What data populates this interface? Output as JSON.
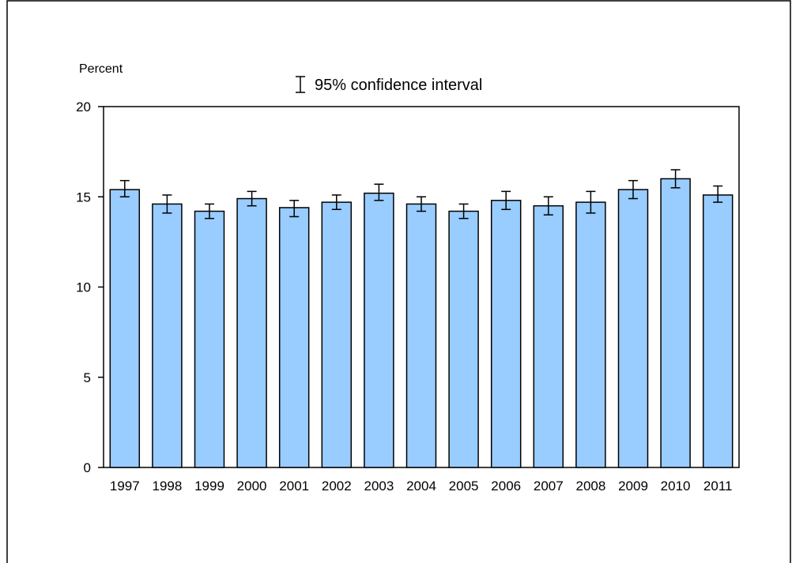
{
  "chart_data": {
    "type": "bar",
    "title": "",
    "xlabel": "",
    "ylabel": "Percent",
    "ylim": [
      0,
      20
    ],
    "yticks": [
      0,
      5,
      10,
      15,
      20
    ],
    "grid": false,
    "legend": {
      "label": "95% confidence interval",
      "placement": "top-center"
    },
    "colors": {
      "bar_fill": "#99ccff",
      "bar_stroke": "#000000"
    },
    "categories": [
      "1997",
      "1998",
      "1999",
      "2000",
      "2001",
      "2002",
      "2003",
      "2004",
      "2005",
      "2006",
      "2007",
      "2008",
      "2009",
      "2010",
      "2011"
    ],
    "values": [
      15.4,
      14.6,
      14.2,
      14.9,
      14.4,
      14.7,
      15.2,
      14.6,
      14.2,
      14.8,
      14.5,
      14.7,
      15.4,
      16.0,
      15.1
    ],
    "ci_lower": [
      15.0,
      14.1,
      13.8,
      14.5,
      13.9,
      14.3,
      14.8,
      14.2,
      13.8,
      14.3,
      14.0,
      14.1,
      14.9,
      15.5,
      14.7
    ],
    "ci_upper": [
      15.9,
      15.1,
      14.6,
      15.3,
      14.8,
      15.1,
      15.7,
      15.0,
      14.6,
      15.3,
      15.0,
      15.3,
      15.9,
      16.5,
      15.6
    ]
  }
}
